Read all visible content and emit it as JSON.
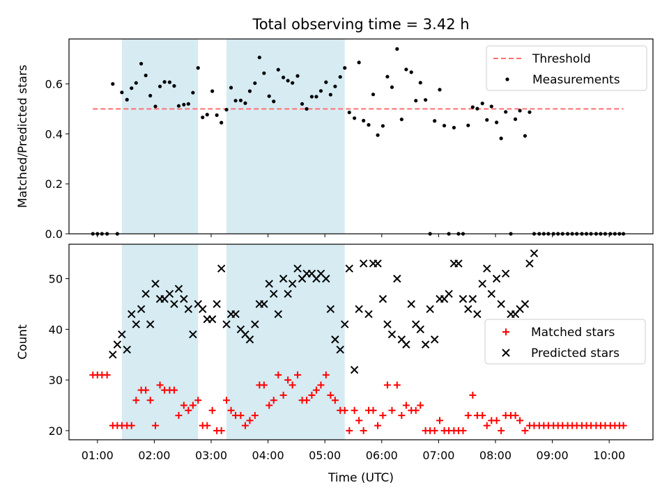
{
  "figure": {
    "title": "Total observing time = 3.42 h",
    "xlabel": "Time (UTC)"
  },
  "colors": {
    "threshold": "#ff6e6e",
    "measurements": "#000000",
    "matched": "#ff0000",
    "predicted": "#000000",
    "shade": "#add8e6"
  },
  "chart_data": [
    {
      "type": "scatter",
      "ylabel": "Matched/Predicted stars",
      "xlim": [
        0.5,
        10.77
      ],
      "ylim": [
        0,
        0.78
      ],
      "yticks": [
        0.0,
        0.2,
        0.4,
        0.6
      ],
      "ytick_labels": [
        "0.0",
        "0.2",
        "0.4",
        "0.6"
      ],
      "legend": {
        "position": "top-right",
        "entries": [
          "Threshold",
          "Measurements"
        ]
      },
      "shaded_ranges_x": [
        [
          1.43,
          2.77
        ],
        [
          3.27,
          5.35
        ]
      ],
      "threshold": {
        "name": "Threshold",
        "y": 0.5,
        "x_range": [
          0.92,
          10.25
        ],
        "style": "dashed"
      },
      "series": [
        {
          "name": "Measurements",
          "marker": "dot",
          "x": [
            0.92,
            1.0,
            1.08,
            1.17,
            1.27,
            1.35,
            1.43,
            1.52,
            1.6,
            1.68,
            1.77,
            1.85,
            1.93,
            2.02,
            2.1,
            2.18,
            2.27,
            2.35,
            2.43,
            2.52,
            2.6,
            2.68,
            2.77,
            2.85,
            2.93,
            3.02,
            3.1,
            3.18,
            3.27,
            3.35,
            3.43,
            3.52,
            3.6,
            3.68,
            3.77,
            3.85,
            3.93,
            4.02,
            4.1,
            4.18,
            4.27,
            4.35,
            4.43,
            4.52,
            4.6,
            4.68,
            4.77,
            4.85,
            4.93,
            5.02,
            5.1,
            5.18,
            5.27,
            5.35,
            5.43,
            5.52,
            5.6,
            5.68,
            5.77,
            5.85,
            5.93,
            6.02,
            6.1,
            6.18,
            6.27,
            6.35,
            6.43,
            6.52,
            6.6,
            6.68,
            6.77,
            6.85,
            6.93,
            7.02,
            7.1,
            7.18,
            7.27,
            7.35,
            7.43,
            7.52,
            7.6,
            7.68,
            7.77,
            7.85,
            7.93,
            8.02,
            8.1,
            8.18,
            8.27,
            8.35,
            8.43,
            8.52,
            8.6,
            8.68,
            8.77,
            8.85,
            8.93,
            9.02,
            9.1,
            9.18,
            9.27,
            9.35,
            9.43,
            9.52,
            9.6,
            9.68,
            9.77,
            9.85,
            9.93,
            10.02,
            10.1,
            10.18,
            10.25
          ],
          "y": [
            0,
            0,
            0,
            0,
            0.6,
            0,
            0.566,
            0.537,
            0.583,
            0.604,
            0.681,
            0.634,
            0.553,
            0.51,
            0.59,
            0.608,
            0.607,
            0.592,
            0.512,
            0.517,
            0.52,
            0.565,
            0.664,
            0.466,
            0.477,
            0.571,
            0.475,
            0.445,
            0.497,
            0.585,
            0.533,
            0.534,
            0.523,
            0.571,
            0.603,
            0.706,
            0.643,
            0.551,
            0.53,
            0.657,
            0.626,
            0.613,
            0.604,
            0.632,
            0.52,
            0.5,
            0.549,
            0.549,
            0.572,
            0.607,
            0.557,
            0.59,
            0.628,
            0.664,
            0.486,
            0.463,
            0.686,
            0.453,
            0.436,
            0.558,
            0.395,
            0.432,
            0.629,
            0.587,
            0.74,
            0.458,
            0.658,
            0.647,
            0.533,
            0.605,
            0.536,
            0,
            0.452,
            0.577,
            0.433,
            0,
            0.425,
            0,
            0,
            0.434,
            0.507,
            0.501,
            0.522,
            0.456,
            0.51,
            0.446,
            0.382,
            0.488,
            0,
            0.459,
            0.493,
            0.392,
            0.487,
            0,
            0,
            0,
            0,
            0,
            0,
            0,
            0,
            0,
            0,
            0,
            0,
            0,
            0,
            0,
            0,
            0,
            0,
            0,
            0
          ]
        }
      ]
    },
    {
      "type": "scatter",
      "ylabel": "Count",
      "xlim": [
        0.5,
        10.77
      ],
      "ylim": [
        18.2,
        56.8
      ],
      "yticks": [
        20,
        30,
        40,
        50
      ],
      "ytick_labels": [
        "20",
        "30",
        "40",
        "50"
      ],
      "xticks": [
        1,
        2,
        3,
        4,
        5,
        6,
        7,
        8,
        9,
        10
      ],
      "xtick_labels": [
        "01:00",
        "02:00",
        "03:00",
        "04:00",
        "05:00",
        "06:00",
        "07:00",
        "08:00",
        "09:00",
        "10:00"
      ],
      "legend": {
        "position": "center-right",
        "entries": [
          "Matched stars",
          "Predicted stars"
        ]
      },
      "shaded_ranges_x": [
        [
          1.43,
          2.77
        ],
        [
          3.27,
          5.35
        ]
      ],
      "series": [
        {
          "name": "Matched stars",
          "marker": "plus",
          "x": [
            0.92,
            1.0,
            1.08,
            1.17,
            1.27,
            1.35,
            1.43,
            1.52,
            1.6,
            1.68,
            1.77,
            1.85,
            1.93,
            2.02,
            2.1,
            2.18,
            2.27,
            2.35,
            2.43,
            2.52,
            2.6,
            2.68,
            2.77,
            2.85,
            2.93,
            3.02,
            3.1,
            3.18,
            3.27,
            3.35,
            3.43,
            3.52,
            3.6,
            3.68,
            3.77,
            3.85,
            3.93,
            4.02,
            4.1,
            4.18,
            4.27,
            4.35,
            4.43,
            4.52,
            4.6,
            4.68,
            4.77,
            4.85,
            4.93,
            5.02,
            5.1,
            5.18,
            5.27,
            5.35,
            5.43,
            5.52,
            5.6,
            5.68,
            5.77,
            5.85,
            5.93,
            6.02,
            6.1,
            6.18,
            6.27,
            6.35,
            6.43,
            6.52,
            6.6,
            6.68,
            6.77,
            6.85,
            6.93,
            7.02,
            7.1,
            7.18,
            7.27,
            7.35,
            7.43,
            7.52,
            7.6,
            7.68,
            7.77,
            7.85,
            7.93,
            8.02,
            8.1,
            8.18,
            8.27,
            8.35,
            8.43,
            8.52,
            8.6,
            8.68,
            8.77,
            8.85,
            8.93,
            9.02,
            9.1,
            9.18,
            9.27,
            9.35,
            9.43,
            9.52,
            9.6,
            9.68,
            9.77,
            9.85,
            9.93,
            10.02,
            10.1,
            10.18,
            10.25
          ],
          "y": [
            31,
            31,
            31,
            31,
            21,
            21,
            21,
            21,
            21,
            26,
            28,
            28,
            26,
            21,
            29,
            28,
            28,
            28,
            23,
            25,
            24,
            25,
            26,
            21,
            21,
            24,
            20,
            20,
            26,
            24,
            23,
            23,
            21,
            22,
            23,
            29,
            29,
            25,
            26,
            31,
            27,
            30,
            29,
            31,
            26,
            26,
            27,
            28,
            29,
            31,
            27,
            26,
            24,
            24,
            20,
            24,
            22,
            20,
            24,
            24,
            21,
            23,
            29,
            24,
            29,
            23,
            25,
            24,
            24,
            25,
            20,
            20,
            20,
            22,
            20,
            20,
            20,
            20,
            20,
            23,
            27,
            23,
            23,
            21,
            22,
            22,
            20,
            23,
            23,
            23,
            22,
            20,
            21,
            21,
            21,
            21,
            21,
            21,
            21,
            21,
            21,
            21,
            21,
            21,
            21,
            21,
            21,
            21,
            21,
            21,
            21,
            21,
            21
          ]
        },
        {
          "name": "Predicted stars",
          "marker": "x",
          "x": [
            1.27,
            1.35,
            1.43,
            1.52,
            1.6,
            1.68,
            1.77,
            1.85,
            1.93,
            2.02,
            2.1,
            2.18,
            2.27,
            2.35,
            2.43,
            2.52,
            2.6,
            2.68,
            2.77,
            2.85,
            2.93,
            3.02,
            3.1,
            3.18,
            3.27,
            3.35,
            3.43,
            3.52,
            3.6,
            3.68,
            3.77,
            3.85,
            3.93,
            4.02,
            4.1,
            4.18,
            4.27,
            4.35,
            4.43,
            4.52,
            4.6,
            4.68,
            4.77,
            4.85,
            4.93,
            5.02,
            5.1,
            5.18,
            5.27,
            5.35,
            5.43,
            5.52,
            5.6,
            5.68,
            5.77,
            5.85,
            5.93,
            6.02,
            6.1,
            6.18,
            6.27,
            6.35,
            6.43,
            6.52,
            6.6,
            6.68,
            6.77,
            6.85,
            6.93,
            7.02,
            7.1,
            7.18,
            7.27,
            7.35,
            7.43,
            7.52,
            7.6,
            7.68,
            7.77,
            7.85,
            7.93,
            8.02,
            8.1,
            8.18,
            8.27,
            8.35,
            8.43,
            8.52,
            8.6,
            8.68
          ],
          "y": [
            35,
            37,
            39,
            36,
            43,
            41,
            44,
            47,
            41,
            49,
            46,
            46,
            47,
            45,
            48,
            46,
            44,
            39,
            45,
            44,
            42,
            42,
            45,
            52,
            41,
            43,
            43,
            40,
            39,
            38,
            41,
            45,
            45,
            49,
            47,
            43,
            50,
            47,
            49,
            52,
            50,
            51,
            51,
            50,
            51,
            50,
            44,
            38,
            36,
            41,
            52,
            32,
            44,
            53,
            43,
            53,
            53,
            46,
            41,
            39,
            50,
            38,
            37,
            45,
            41,
            40,
            37,
            44,
            38,
            46,
            46,
            47,
            53,
            53,
            46,
            44,
            46,
            43,
            49,
            52,
            47,
            50,
            45,
            51,
            43,
            43,
            44,
            45,
            53,
            55
          ]
        }
      ]
    }
  ]
}
